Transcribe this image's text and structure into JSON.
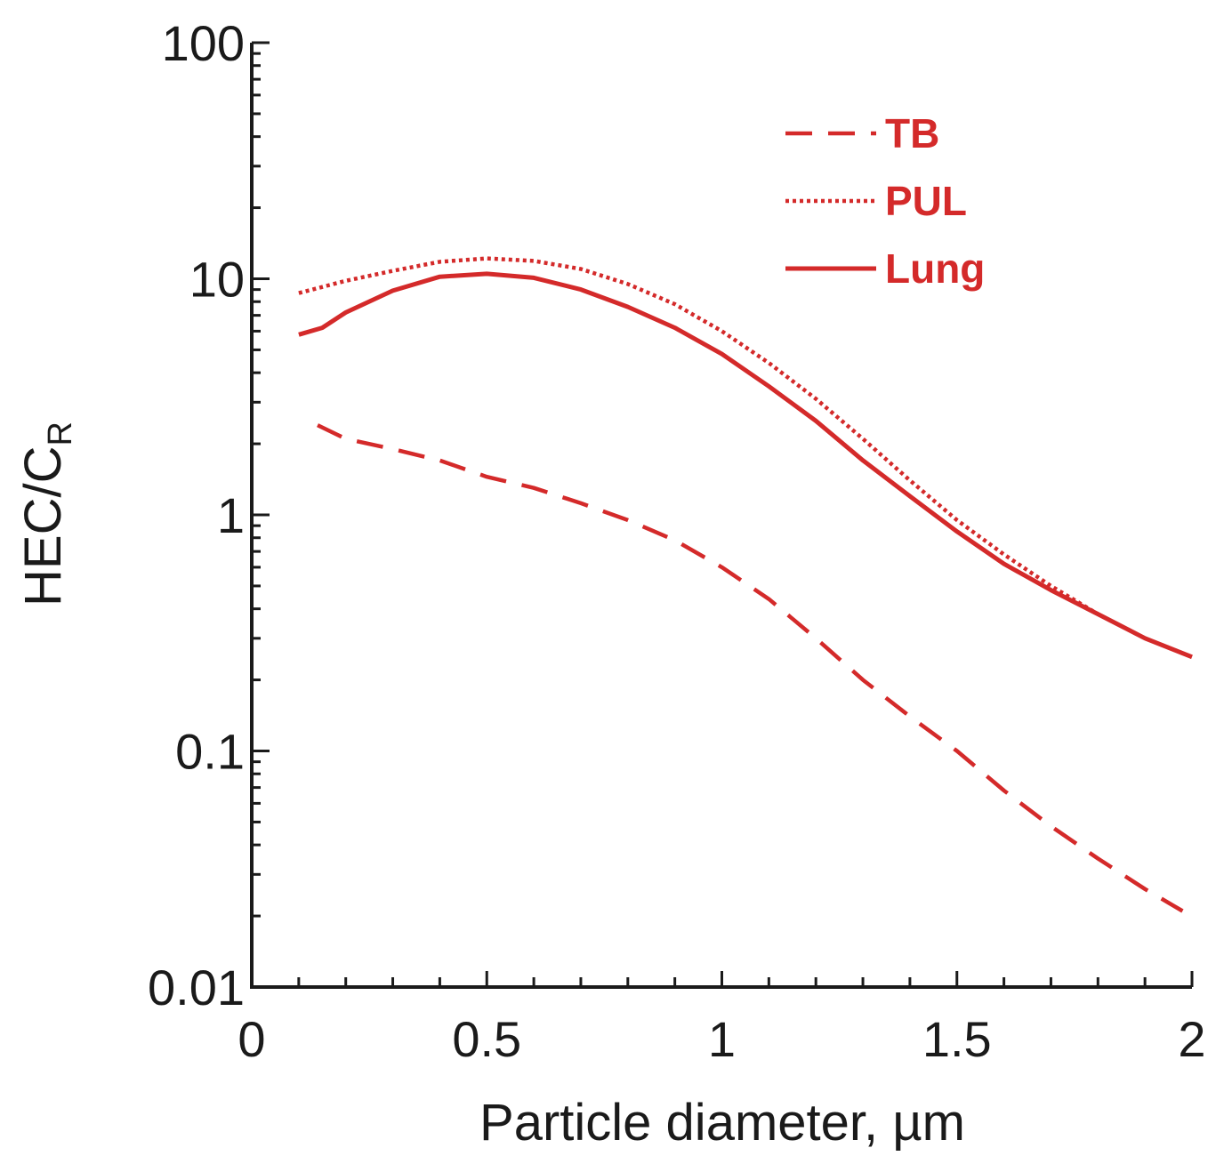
{
  "chart_data": {
    "type": "line",
    "title": "",
    "xlabel": "Particle diameter, µm",
    "ylabel": "HEC/C",
    "ylabel_subscript": "R",
    "xlim": [
      0,
      2
    ],
    "ylim": [
      0.01,
      100
    ],
    "y_scale": "log",
    "x_ticks": [
      0,
      0.5,
      1,
      1.5,
      2
    ],
    "x_tick_labels": [
      "0",
      "0.5",
      "1",
      "1.5",
      "2"
    ],
    "y_ticks": [
      0.01,
      0.1,
      1,
      10,
      100
    ],
    "y_tick_labels": [
      "0.01",
      "0.1",
      "1",
      "10",
      "100"
    ],
    "grid": false,
    "legend_position": "top-right",
    "line_color": "#d42a2a",
    "series": [
      {
        "name": "TB",
        "style": "dashed",
        "x": [
          0.14,
          0.2,
          0.3,
          0.4,
          0.5,
          0.6,
          0.7,
          0.8,
          0.9,
          1.0,
          1.1,
          1.2,
          1.3,
          1.4,
          1.5,
          1.6,
          1.7,
          1.8,
          1.9,
          1.98
        ],
        "y": [
          2.4,
          2.1,
          1.9,
          1.7,
          1.45,
          1.3,
          1.12,
          0.95,
          0.78,
          0.6,
          0.44,
          0.3,
          0.2,
          0.14,
          0.1,
          0.068,
          0.048,
          0.035,
          0.026,
          0.021
        ]
      },
      {
        "name": "PUL",
        "style": "dotted",
        "x": [
          0.1,
          0.2,
          0.3,
          0.4,
          0.5,
          0.6,
          0.7,
          0.8,
          0.9,
          1.0,
          1.1,
          1.2,
          1.3,
          1.4,
          1.5,
          1.6,
          1.7,
          1.8,
          1.9,
          2.0
        ],
        "y": [
          8.7,
          9.8,
          10.8,
          11.8,
          12.2,
          11.9,
          11.0,
          9.5,
          7.8,
          6.0,
          4.4,
          3.1,
          2.1,
          1.4,
          0.95,
          0.68,
          0.5,
          0.38,
          0.3,
          0.25
        ]
      },
      {
        "name": "Lung",
        "style": "solid",
        "x": [
          0.1,
          0.15,
          0.2,
          0.3,
          0.4,
          0.5,
          0.6,
          0.7,
          0.8,
          0.9,
          1.0,
          1.1,
          1.2,
          1.3,
          1.4,
          1.5,
          1.6,
          1.7,
          1.8,
          1.9,
          2.0
        ],
        "y": [
          5.8,
          6.2,
          7.2,
          8.9,
          10.2,
          10.5,
          10.1,
          9.0,
          7.6,
          6.2,
          4.8,
          3.5,
          2.5,
          1.7,
          1.2,
          0.85,
          0.62,
          0.48,
          0.38,
          0.3,
          0.25
        ]
      }
    ]
  }
}
